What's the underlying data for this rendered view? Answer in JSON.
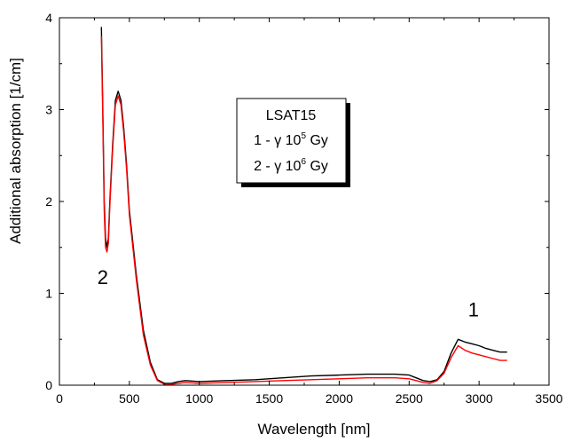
{
  "chart_data": {
    "type": "line",
    "xlabel": "Wavelength [nm]",
    "ylabel": "Additional absorption [1/cm]",
    "xlim": [
      0,
      3500
    ],
    "ylim": [
      0,
      4
    ],
    "x_ticks": [
      "0",
      "500",
      "1000",
      "1500",
      "2000",
      "2500",
      "3000",
      "3500"
    ],
    "y_ticks": [
      "0",
      "1",
      "2",
      "3",
      "4"
    ],
    "grid": false,
    "legend": {
      "placement": "center-top",
      "title": "LSAT15",
      "entries": [
        {
          "num": "1 - ",
          "sym": "γ",
          "base": " 10",
          "exp": "5",
          "unit": " Gy"
        },
        {
          "num": "2 - ",
          "sym": "γ",
          "base": " 10",
          "exp": "6",
          "unit": " Gy"
        }
      ]
    },
    "annotations": [
      {
        "text": "2",
        "x": 310,
        "y": 1.1
      },
      {
        "text": "1",
        "x": 2960,
        "y": 0.75
      }
    ],
    "series": [
      {
        "name": "1 - γ 10^5 Gy",
        "color": "#000000",
        "x": [
          300,
          310,
          320,
          330,
          340,
          350,
          360,
          380,
          400,
          420,
          440,
          460,
          480,
          500,
          550,
          600,
          650,
          700,
          750,
          800,
          850,
          900,
          1000,
          1200,
          1400,
          1600,
          1800,
          2000,
          2200,
          2400,
          2500,
          2550,
          2600,
          2650,
          2700,
          2750,
          2800,
          2850,
          2900,
          2950,
          3000,
          3050,
          3100,
          3150,
          3200
        ],
        "y": [
          3.9,
          3.0,
          2.0,
          1.6,
          1.5,
          1.6,
          2.0,
          2.6,
          3.1,
          3.2,
          3.1,
          2.8,
          2.4,
          1.9,
          1.2,
          0.6,
          0.25,
          0.06,
          0.02,
          0.02,
          0.04,
          0.05,
          0.04,
          0.05,
          0.06,
          0.08,
          0.1,
          0.11,
          0.12,
          0.12,
          0.11,
          0.08,
          0.05,
          0.04,
          0.06,
          0.15,
          0.35,
          0.5,
          0.47,
          0.45,
          0.43,
          0.4,
          0.38,
          0.36,
          0.36
        ]
      },
      {
        "name": "2 - γ 10^6 Gy",
        "color": "#ff0000",
        "x": [
          300,
          310,
          320,
          330,
          340,
          350,
          360,
          380,
          400,
          420,
          440,
          460,
          480,
          500,
          550,
          600,
          650,
          700,
          750,
          800,
          850,
          900,
          1000,
          1200,
          1400,
          1600,
          1800,
          2000,
          2200,
          2400,
          2500,
          2550,
          2600,
          2650,
          2700,
          2750,
          2800,
          2850,
          2900,
          2950,
          3000,
          3050,
          3100,
          3150,
          3200
        ],
        "y": [
          3.8,
          2.9,
          1.9,
          1.5,
          1.45,
          1.55,
          1.95,
          2.55,
          3.05,
          3.15,
          3.05,
          2.75,
          2.35,
          1.85,
          1.15,
          0.55,
          0.22,
          0.05,
          0.01,
          0.01,
          0.02,
          0.03,
          0.02,
          0.03,
          0.04,
          0.05,
          0.06,
          0.07,
          0.08,
          0.08,
          0.07,
          0.05,
          0.03,
          0.02,
          0.05,
          0.13,
          0.3,
          0.43,
          0.38,
          0.35,
          0.33,
          0.31,
          0.29,
          0.27,
          0.27
        ]
      }
    ]
  }
}
